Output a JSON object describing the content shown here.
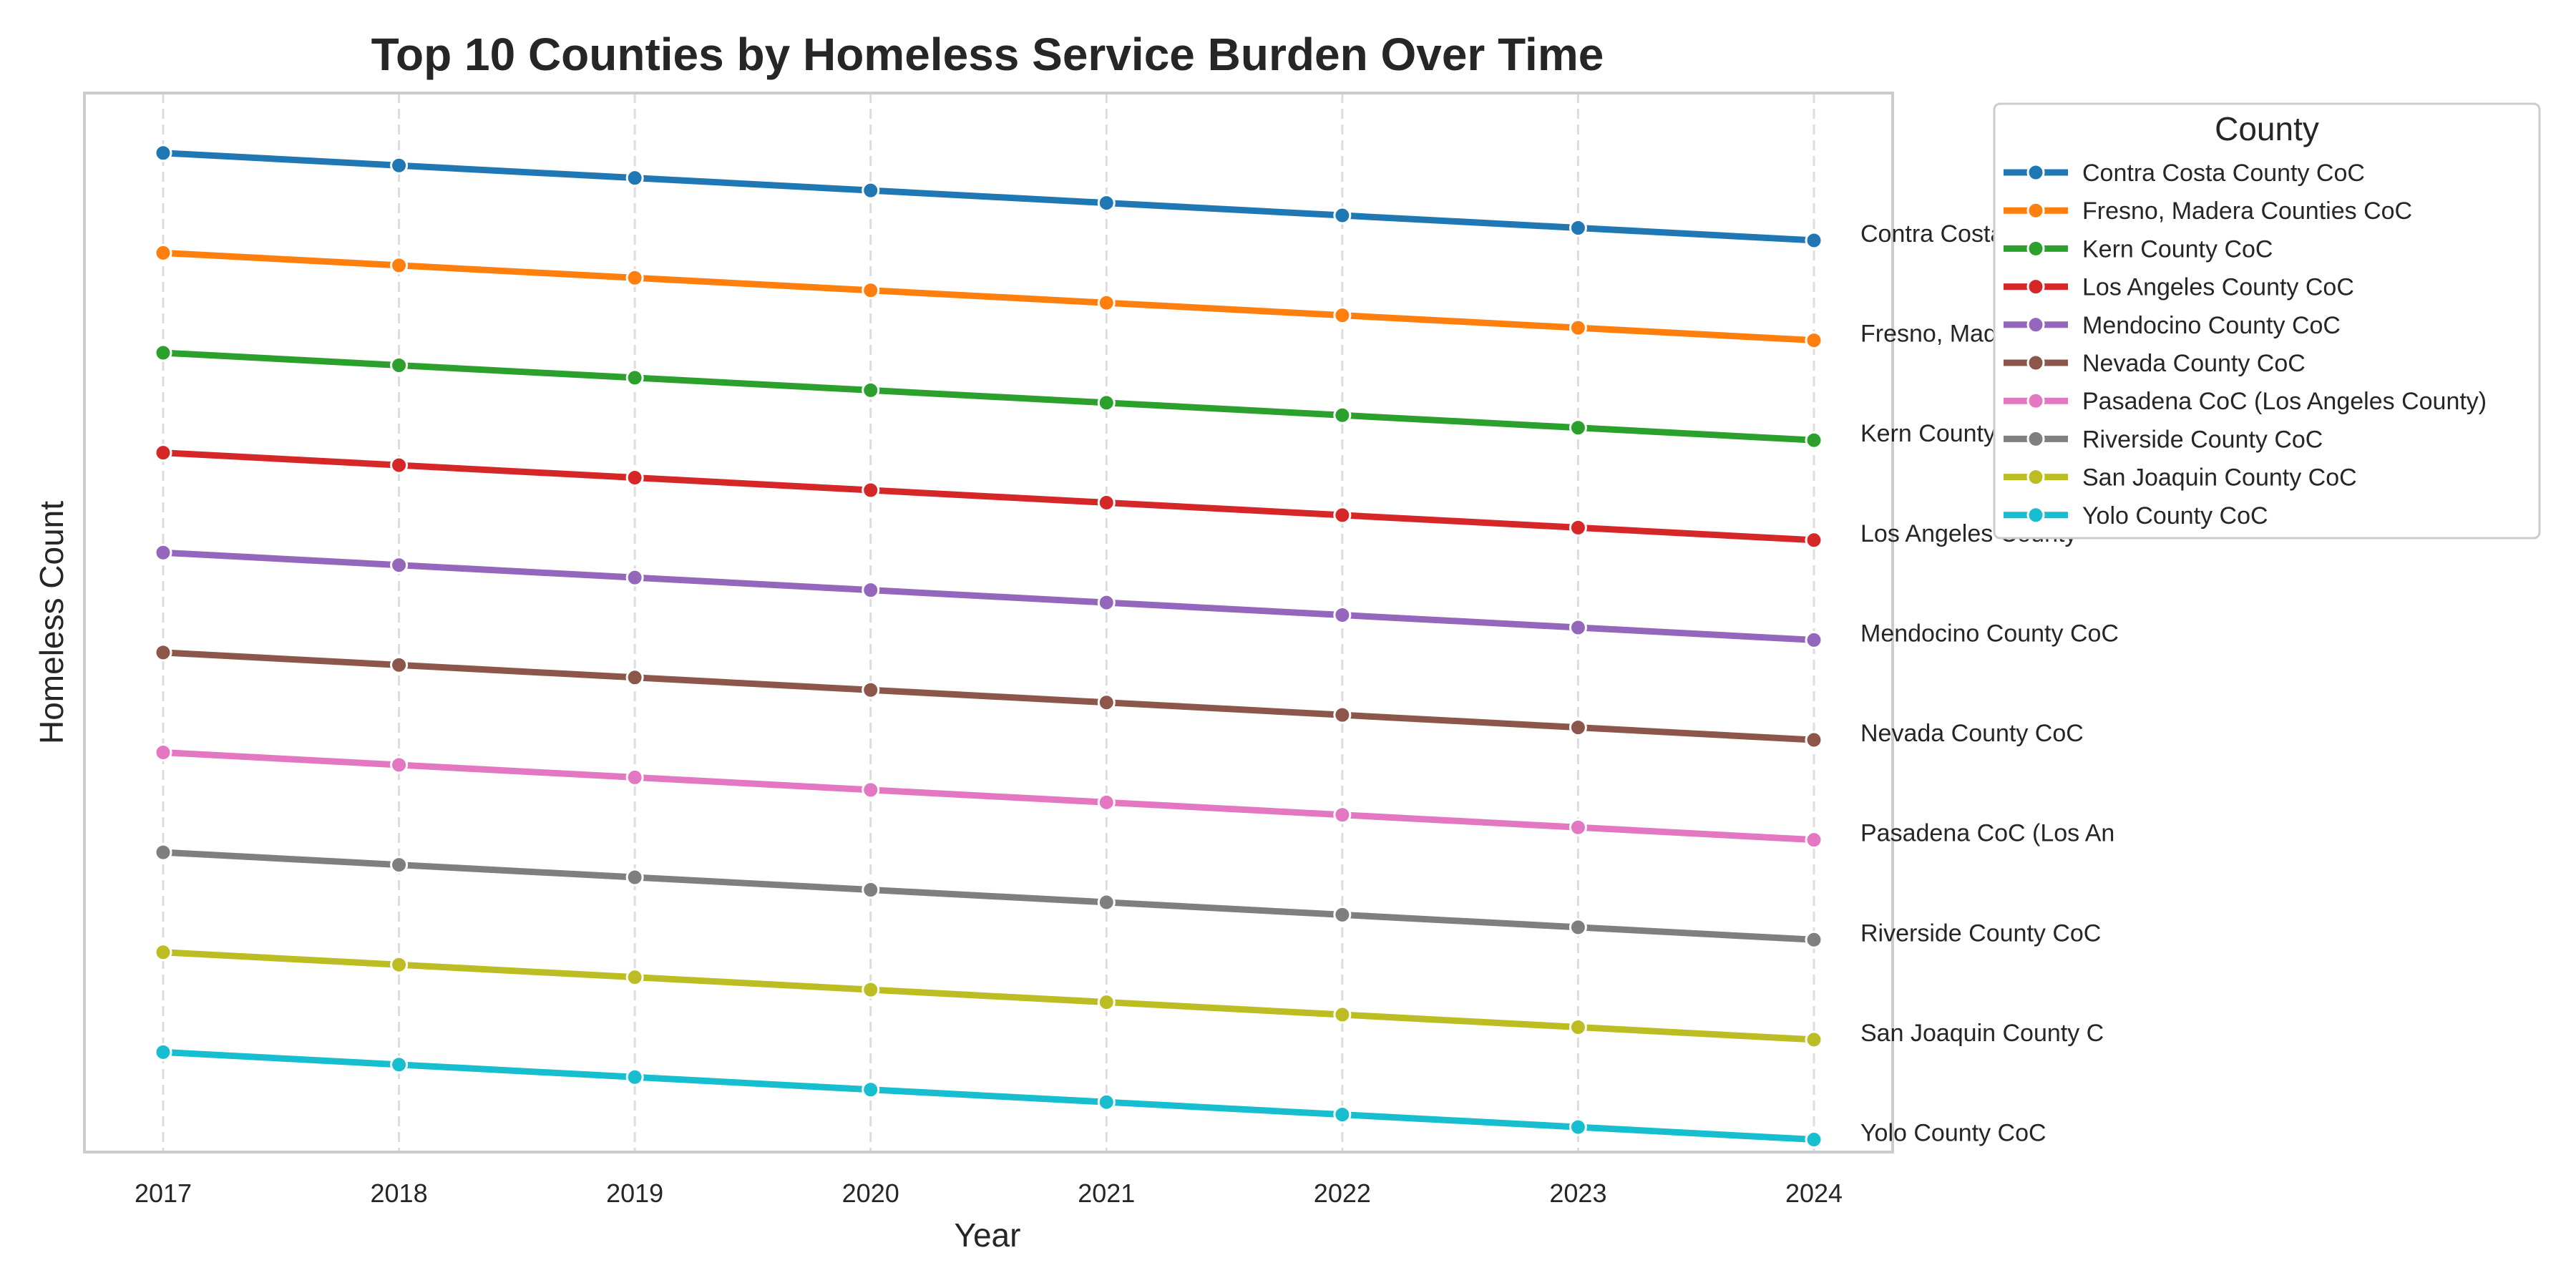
{
  "chart_data": {
    "type": "line",
    "title": "Top 10 Counties by Homeless Service Burden Over Time",
    "xlabel": "Year",
    "ylabel": "Homeless Count",
    "x": [
      "2017",
      "2018",
      "2019",
      "2020",
      "2021",
      "2022",
      "2023",
      "2024"
    ],
    "y_tick_labels_shown": false,
    "grid": "vertical dashed",
    "legend": {
      "title": "County",
      "placement": "upper-right-outside"
    },
    "series": [
      {
        "name": "Contra Costa County CoC",
        "color": "#1f77b4",
        "end_label": "Contra Costa County",
        "values": [
          10.0,
          9.875,
          9.75,
          9.625,
          9.5,
          9.375,
          9.25,
          9.125
        ]
      },
      {
        "name": "Fresno, Madera Counties CoC",
        "color": "#ff7f0e",
        "end_label": "Fresno, Madera Count",
        "values": [
          9.0,
          8.875,
          8.75,
          8.625,
          8.5,
          8.375,
          8.25,
          8.125
        ]
      },
      {
        "name": "Kern County CoC",
        "color": "#2ca02c",
        "end_label": "Kern County CoC",
        "values": [
          8.0,
          7.875,
          7.75,
          7.625,
          7.5,
          7.375,
          7.25,
          7.125
        ]
      },
      {
        "name": "Los Angeles County CoC",
        "color": "#d62728",
        "end_label": "Los Angeles County",
        "values": [
          7.0,
          6.875,
          6.75,
          6.625,
          6.5,
          6.375,
          6.25,
          6.125
        ]
      },
      {
        "name": "Mendocino County CoC",
        "color": "#9467bd",
        "end_label": "Mendocino County CoC",
        "values": [
          6.0,
          5.875,
          5.75,
          5.625,
          5.5,
          5.375,
          5.25,
          5.125
        ]
      },
      {
        "name": "Nevada County CoC",
        "color": "#8c564b",
        "end_label": "Nevada County CoC",
        "values": [
          5.0,
          4.875,
          4.75,
          4.625,
          4.5,
          4.375,
          4.25,
          4.125
        ]
      },
      {
        "name": "Pasadena CoC (Los Angeles County)",
        "color": "#e377c2",
        "end_label": "Pasadena CoC (Los An",
        "values": [
          4.0,
          3.875,
          3.75,
          3.625,
          3.5,
          3.375,
          3.25,
          3.125
        ]
      },
      {
        "name": "Riverside County CoC",
        "color": "#7f7f7f",
        "end_label": "Riverside County CoC",
        "values": [
          3.0,
          2.875,
          2.75,
          2.625,
          2.5,
          2.375,
          2.25,
          2.125
        ]
      },
      {
        "name": "San Joaquin County CoC",
        "color": "#bcbd22",
        "end_label": "San Joaquin County C",
        "values": [
          2.0,
          1.875,
          1.75,
          1.625,
          1.5,
          1.375,
          1.25,
          1.125
        ]
      },
      {
        "name": "Yolo County CoC",
        "color": "#17becf",
        "end_label": "Yolo County CoC",
        "values": [
          1.0,
          0.875,
          0.75,
          0.625,
          0.5,
          0.375,
          0.25,
          0.125
        ]
      }
    ]
  }
}
